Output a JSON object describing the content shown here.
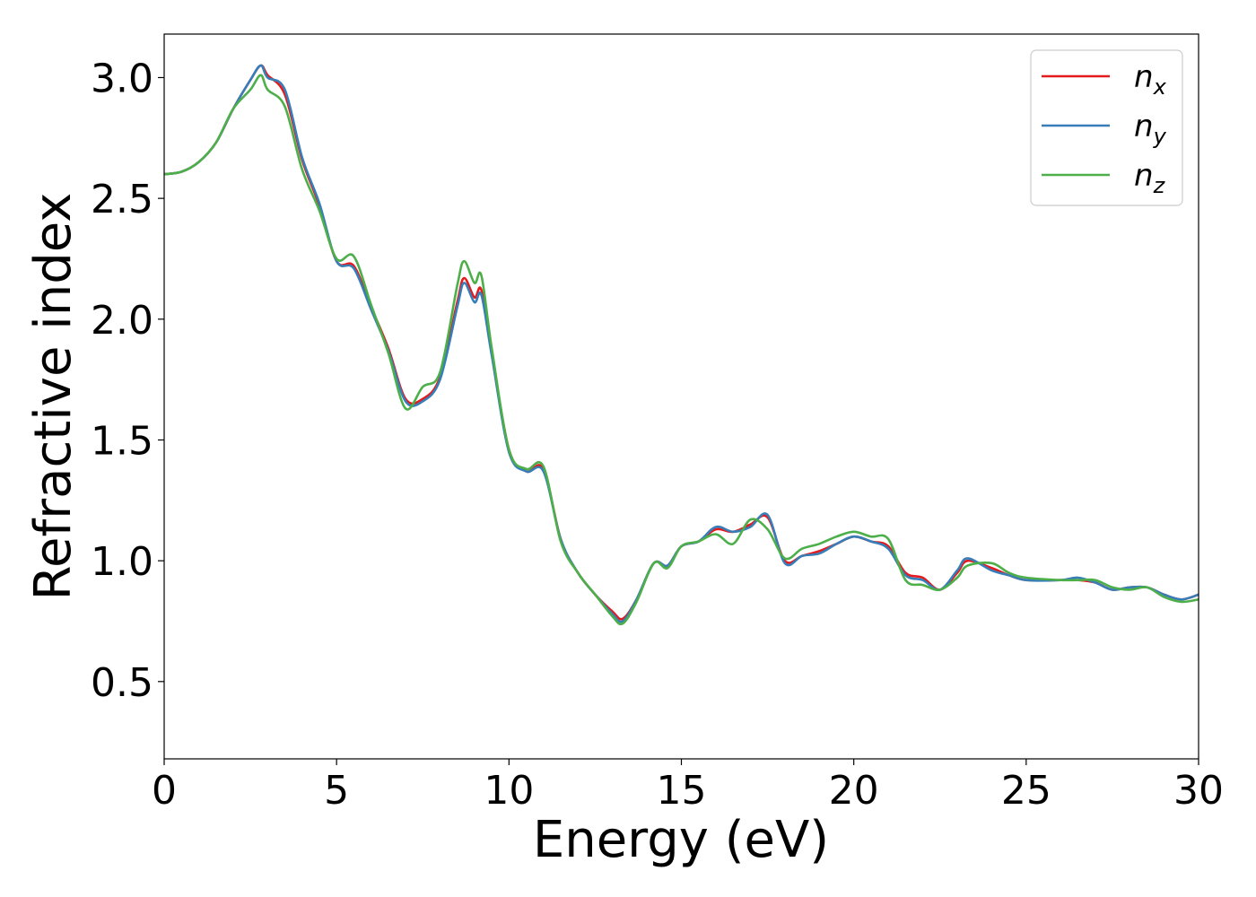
{
  "chart_data": {
    "type": "line",
    "title": "",
    "xlabel": "Energy (eV)",
    "ylabel": "Refractive index",
    "xlim": [
      0,
      30
    ],
    "ylim": [
      0.18,
      3.18
    ],
    "xticks": [
      0,
      5,
      10,
      15,
      20,
      25,
      30
    ],
    "xtick_labels": [
      "0",
      "5",
      "10",
      "15",
      "20",
      "25",
      "30"
    ],
    "yticks": [
      0.5,
      1.0,
      1.5,
      2.0,
      2.5,
      3.0
    ],
    "ytick_labels": [
      "0.5",
      "1.0",
      "1.5",
      "2.0",
      "2.5",
      "3.0"
    ],
    "grid": false,
    "legend_position": "top-right",
    "x": [
      0,
      0.5,
      1.0,
      1.5,
      2.0,
      2.5,
      2.8,
      3.0,
      3.5,
      4.0,
      4.5,
      5.0,
      5.5,
      6.0,
      6.5,
      7.0,
      7.5,
      8.0,
      8.5,
      8.7,
      9.0,
      9.2,
      9.5,
      10.0,
      10.5,
      11.0,
      11.5,
      12.0,
      12.5,
      13.0,
      13.3,
      13.7,
      14.2,
      14.6,
      15.0,
      15.5,
      16.0,
      16.5,
      17.0,
      17.5,
      18.0,
      18.5,
      19.0,
      19.5,
      20.0,
      20.5,
      21.0,
      21.5,
      22.0,
      22.5,
      23.0,
      23.3,
      24.0,
      24.5,
      25.0,
      26.0,
      26.5,
      27.0,
      27.5,
      28.0,
      28.5,
      29.0,
      29.5,
      30.0
    ],
    "series": [
      {
        "name": "n_x",
        "label_base": "n",
        "label_sub": "x",
        "color": "#e41a1c",
        "values": [
          2.6,
          2.61,
          2.65,
          2.73,
          2.87,
          2.99,
          3.05,
          3.01,
          2.93,
          2.66,
          2.47,
          2.24,
          2.22,
          2.05,
          1.88,
          1.67,
          1.67,
          1.76,
          2.07,
          2.17,
          2.09,
          2.12,
          1.86,
          1.46,
          1.37,
          1.38,
          1.09,
          0.95,
          0.86,
          0.79,
          0.76,
          0.84,
          0.99,
          0.98,
          1.06,
          1.08,
          1.13,
          1.12,
          1.15,
          1.18,
          1.0,
          1.02,
          1.04,
          1.07,
          1.1,
          1.08,
          1.06,
          0.95,
          0.93,
          0.88,
          0.95,
          1.0,
          0.97,
          0.94,
          0.92,
          0.92,
          0.92,
          0.91,
          0.88,
          0.89,
          0.89,
          0.86,
          0.84,
          0.86
        ]
      },
      {
        "name": "n_y",
        "label_base": "n",
        "label_sub": "y",
        "color": "#377eb8",
        "values": [
          2.6,
          2.61,
          2.65,
          2.73,
          2.87,
          2.99,
          3.05,
          3.0,
          2.95,
          2.67,
          2.48,
          2.24,
          2.21,
          2.04,
          1.87,
          1.66,
          1.66,
          1.75,
          2.05,
          2.15,
          2.07,
          2.1,
          1.85,
          1.45,
          1.37,
          1.37,
          1.09,
          0.95,
          0.86,
          0.78,
          0.75,
          0.84,
          0.99,
          0.98,
          1.06,
          1.08,
          1.14,
          1.12,
          1.14,
          1.19,
          0.99,
          1.02,
          1.03,
          1.07,
          1.1,
          1.08,
          1.05,
          0.94,
          0.92,
          0.88,
          0.96,
          1.01,
          0.96,
          0.94,
          0.92,
          0.92,
          0.93,
          0.91,
          0.88,
          0.89,
          0.89,
          0.86,
          0.84,
          0.86
        ]
      },
      {
        "name": "n_z",
        "label_base": "n",
        "label_sub": "z",
        "color": "#4daf4a",
        "values": [
          2.6,
          2.61,
          2.65,
          2.73,
          2.87,
          2.95,
          3.01,
          2.95,
          2.88,
          2.62,
          2.45,
          2.25,
          2.26,
          2.06,
          1.86,
          1.63,
          1.72,
          1.78,
          2.14,
          2.24,
          2.15,
          2.18,
          1.88,
          1.46,
          1.38,
          1.39,
          1.08,
          0.95,
          0.86,
          0.77,
          0.74,
          0.83,
          0.99,
          0.97,
          1.06,
          1.08,
          1.11,
          1.07,
          1.17,
          1.13,
          1.01,
          1.05,
          1.07,
          1.1,
          1.12,
          1.1,
          1.09,
          0.92,
          0.9,
          0.88,
          0.93,
          0.98,
          0.99,
          0.95,
          0.93,
          0.92,
          0.92,
          0.92,
          0.89,
          0.88,
          0.89,
          0.85,
          0.83,
          0.84
        ]
      }
    ]
  }
}
